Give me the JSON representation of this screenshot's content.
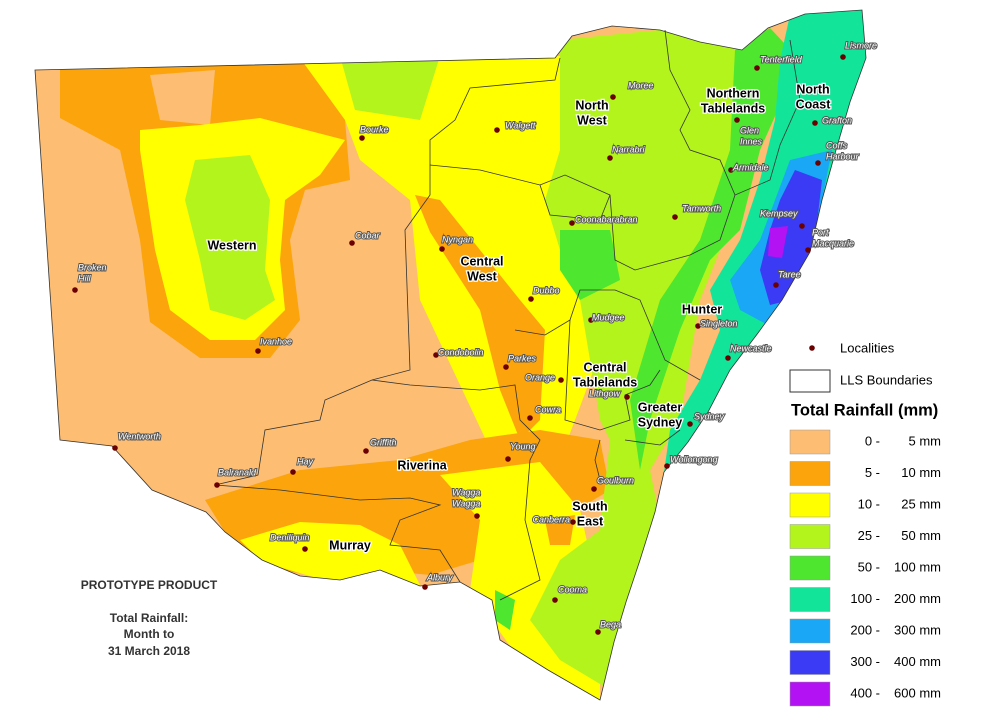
{
  "map": {
    "regions": [
      [
        "Western"
      ],
      [
        "North",
        "West"
      ],
      [
        "Northern",
        "Tablelands"
      ],
      [
        "North",
        "Coast"
      ],
      [
        "Central",
        "West"
      ],
      [
        "Hunter"
      ],
      [
        "Central",
        "Tablelands"
      ],
      [
        "Greater",
        "Sydney"
      ],
      [
        "Riverina"
      ],
      [
        "South",
        "East"
      ],
      [
        "Murray"
      ]
    ],
    "localities": [
      [
        "Moree"
      ],
      [
        "Walgett"
      ],
      [
        "Bourke"
      ],
      [
        "Narrabri"
      ],
      [
        "Tenterfield"
      ],
      [
        "Lismore"
      ],
      [
        "Glen",
        "Innes"
      ],
      [
        "Grafton"
      ],
      [
        "Coffs",
        "Harbour"
      ],
      [
        "Armidale"
      ],
      [
        "Tamworth"
      ],
      [
        "Coonabarabran"
      ],
      [
        "Kempsey"
      ],
      [
        "Port",
        "Macquarie"
      ],
      [
        "Taree"
      ],
      [
        "Cobar"
      ],
      [
        "Nyngan"
      ],
      [
        "Broken",
        "Hill"
      ],
      [
        "Dubbo"
      ],
      [
        "Mudgee"
      ],
      [
        "Singleton"
      ],
      [
        "Newcastle"
      ],
      [
        "Ivanhoe"
      ],
      [
        "Condobolin"
      ],
      [
        "Parkes"
      ],
      [
        "Orange"
      ],
      [
        "Lithgow"
      ],
      [
        "Sydney"
      ],
      [
        "Cowra"
      ],
      [
        "Wentworth"
      ],
      [
        "Griffith"
      ],
      [
        "Young"
      ],
      [
        "Wollongong"
      ],
      [
        "Hay"
      ],
      [
        "Balranald"
      ],
      [
        "Goulburn"
      ],
      [
        "Wagga",
        "Wagga"
      ],
      [
        "Canberra"
      ],
      [
        "Deniliquin"
      ],
      [
        "Albury"
      ],
      [
        "Cooma"
      ],
      [
        "Bega"
      ]
    ],
    "legend": {
      "localities": "Localities",
      "boundaries": "LLS Boundaries",
      "title": "Total Rainfall (mm)",
      "items": [
        {
          "from": "0 -",
          "to": "5 mm",
          "color": "#fdbd72"
        },
        {
          "from": "5 -",
          "to": "10 mm",
          "color": "#fca40c"
        },
        {
          "from": "10 -",
          "to": "25 mm",
          "color": "#ffff00"
        },
        {
          "from": "25 -",
          "to": "50 mm",
          "color": "#b3f41c"
        },
        {
          "from": "50 -",
          "to": "100 mm",
          "color": "#4ee62e"
        },
        {
          "from": "100 -",
          "to": "200 mm",
          "color": "#12e59a"
        },
        {
          "from": "200 -",
          "to": "300 mm",
          "color": "#1aa7f5"
        },
        {
          "from": "300 -",
          "to": "400 mm",
          "color": "#3b3bf5"
        },
        {
          "from": "400 -",
          "to": "600 mm",
          "color": "#b312f2"
        }
      ]
    },
    "notes": {
      "product": "PROTOTYPE PRODUCT",
      "caption": [
        "Total Rainfall:",
        "Month to",
        "31 March 2018"
      ]
    }
  }
}
